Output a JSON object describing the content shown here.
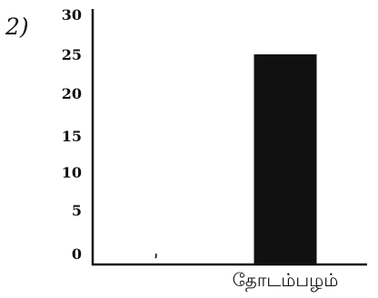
{
  "question_label": "2)",
  "colors": {
    "bar": "#111111",
    "axis": "#111111",
    "background": "#ffffff"
  },
  "chart_data": {
    "type": "bar",
    "categories": [
      "",
      "தோடம்பழம்"
    ],
    "values": [
      0,
      25
    ],
    "y_ticks": [
      0,
      5,
      10,
      15,
      20,
      25,
      30
    ],
    "ylim": [
      0,
      30
    ],
    "grid": false,
    "title": "",
    "xlabel": "",
    "ylabel": ""
  }
}
